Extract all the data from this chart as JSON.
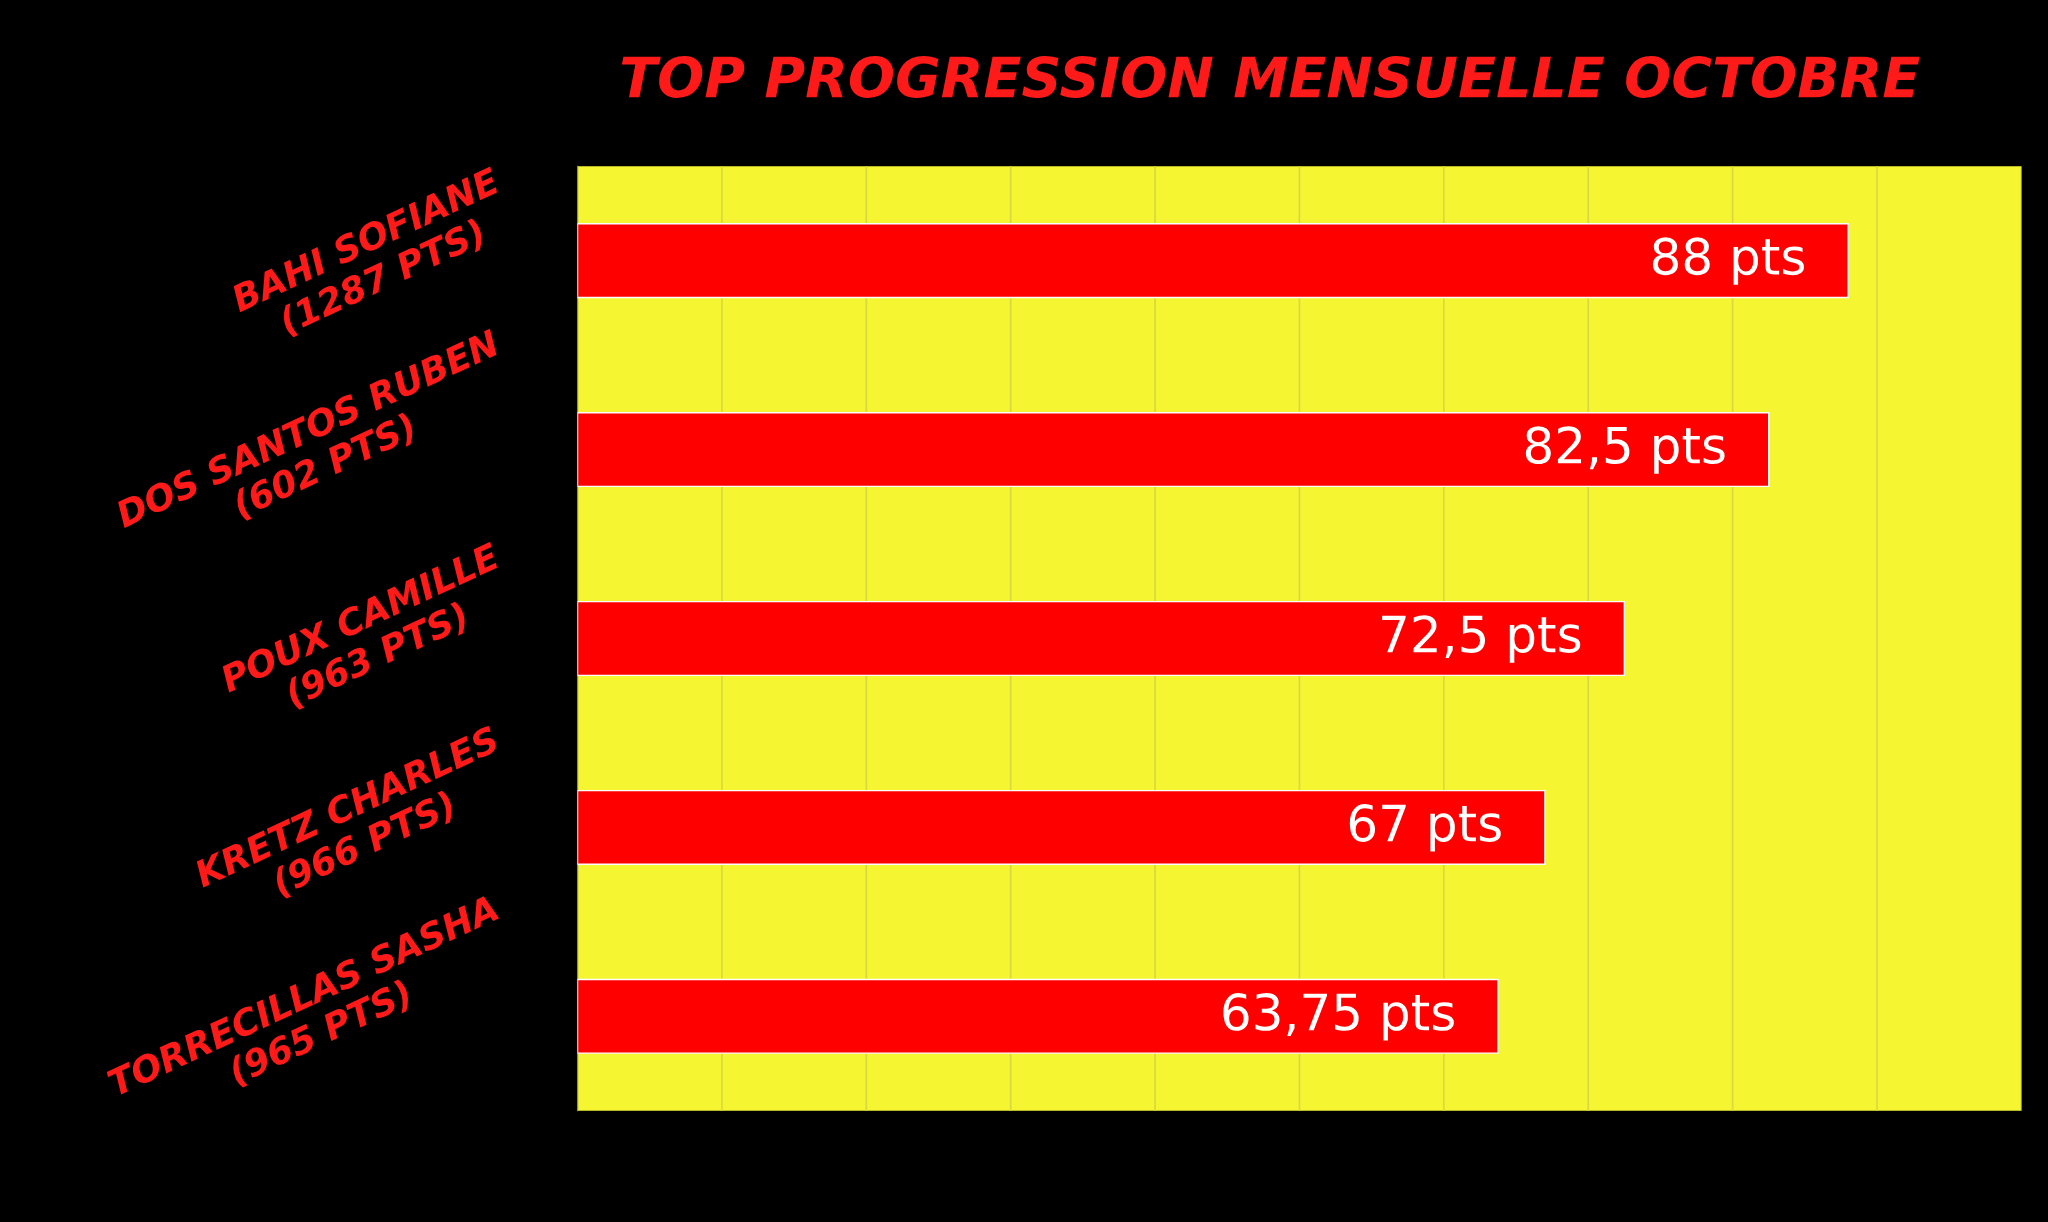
{
  "chart_data": {
    "type": "bar",
    "orientation": "horizontal",
    "title": "TOP PROGRESSION MENSUELLE OCTOBRE",
    "categories": [
      "BAHI SOFIANE\n(1287 PTS)",
      "DOS SANTOS RUBEN\n(602 PTS)",
      "POUX CAMILLE\n(963 PTS)",
      "KRETZ CHARLES\n(966 PTS)",
      "TORRECILLAS SASHA\n(965 PTS)"
    ],
    "values": [
      88,
      82.5,
      72.5,
      67,
      63.75
    ],
    "value_labels": [
      "88 pts",
      "82,5 pts",
      "72,5 pts",
      "67 pts",
      "63,75 pts"
    ],
    "color": "#ff0000",
    "xlim": [
      0,
      100
    ],
    "xticks": [
      {
        "value": 0,
        "label": null
      },
      {
        "value": 10,
        "label": null
      },
      {
        "value": 20,
        "label": null
      },
      {
        "value": 30,
        "label": null
      },
      {
        "value": 40,
        "label": null
      },
      {
        "value": 50,
        "label": null
      },
      {
        "value": 60,
        "label": null
      },
      {
        "value": 70,
        "label": null
      },
      {
        "value": 80,
        "label": null
      },
      {
        "value": 90,
        "label": null
      },
      {
        "value": 100,
        "label": null
      }
    ],
    "grid": "x",
    "tick_labels": "y"
  }
}
